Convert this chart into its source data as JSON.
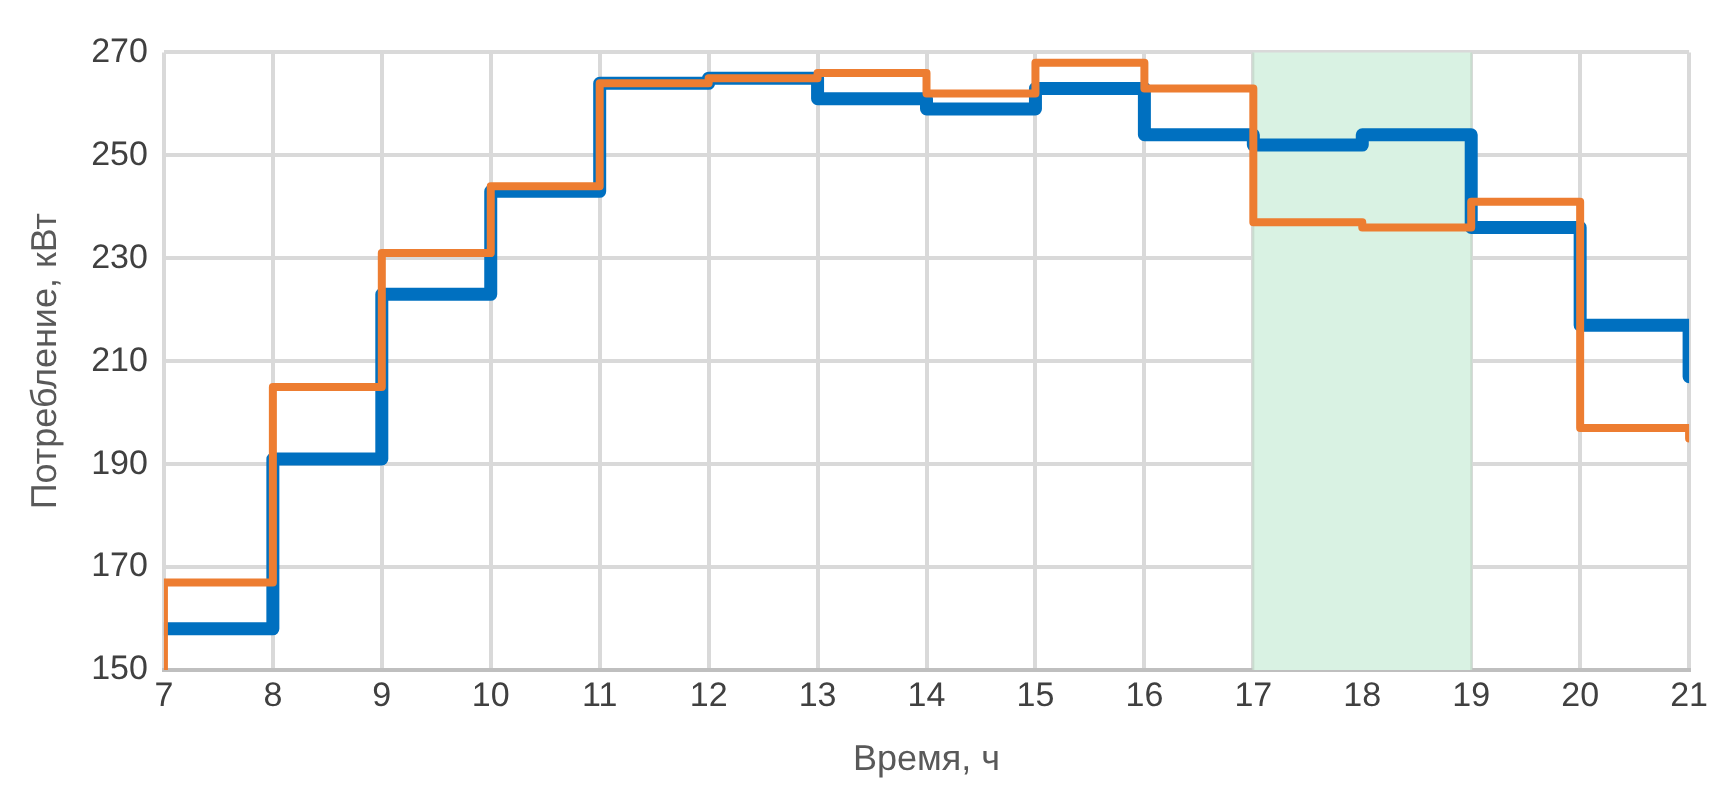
{
  "chart_data": {
    "type": "step",
    "xlabel": "Время, ч",
    "ylabel": "Потребление, кВт",
    "x": [
      7,
      8,
      9,
      10,
      11,
      12,
      13,
      14,
      15,
      16,
      17,
      18,
      19,
      20,
      21,
      21
    ],
    "series": [
      {
        "color": "#0070c0",
        "values": [
          158,
          158,
          191,
          223,
          243,
          264,
          265,
          261,
          259,
          263,
          254,
          252,
          254,
          236,
          217,
          207
        ]
      },
      {
        "color": "#ed7d31",
        "values": [
          150,
          167,
          205,
          231,
          244,
          264,
          265,
          266,
          262,
          268,
          263,
          237,
          236,
          241,
          197,
          195
        ]
      }
    ],
    "xlim": [
      7,
      21
    ],
    "xticks": [
      7,
      8,
      9,
      10,
      11,
      12,
      13,
      14,
      15,
      16,
      17,
      18,
      19,
      20,
      21
    ],
    "ylim": [
      150,
      270
    ],
    "yticks": [
      150,
      170,
      190,
      210,
      230,
      250,
      270
    ],
    "bands": [
      {
        "axis": "x",
        "from": 17,
        "to": 19,
        "color": "#d9f2e3"
      }
    ],
    "grid": true,
    "legend": false
  }
}
